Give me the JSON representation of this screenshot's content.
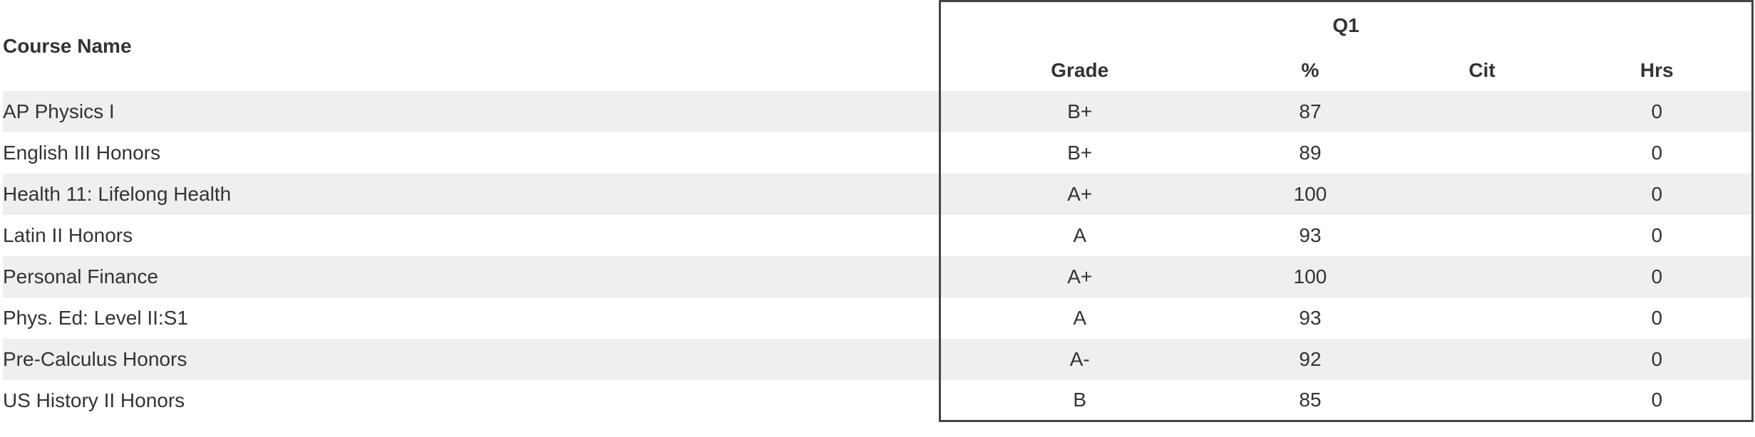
{
  "table": {
    "course_header": "Course Name",
    "quarter_header": "Q1",
    "columns": {
      "grade": "Grade",
      "percent": "%",
      "citizenship": "Cit",
      "hours": "Hrs"
    },
    "rows": [
      {
        "course": "AP Physics I",
        "grade": "B+",
        "percent": "87",
        "cit": "",
        "hrs": "0"
      },
      {
        "course": "English III Honors",
        "grade": "B+",
        "percent": "89",
        "cit": "",
        "hrs": "0"
      },
      {
        "course": "Health 11: Lifelong Health",
        "grade": "A+",
        "percent": "100",
        "cit": "",
        "hrs": "0"
      },
      {
        "course": "Latin II Honors",
        "grade": "A",
        "percent": "93",
        "cit": "",
        "hrs": "0"
      },
      {
        "course": "Personal Finance",
        "grade": "A+",
        "percent": "100",
        "cit": "",
        "hrs": "0"
      },
      {
        "course": "Phys. Ed: Level II:S1",
        "grade": "A",
        "percent": "93",
        "cit": "",
        "hrs": "0"
      },
      {
        "course": "Pre-Calculus Honors",
        "grade": "A-",
        "percent": "92",
        "cit": "",
        "hrs": "0"
      },
      {
        "course": "US History II Honors",
        "grade": "B",
        "percent": "85",
        "cit": "",
        "hrs": "0"
      }
    ]
  }
}
